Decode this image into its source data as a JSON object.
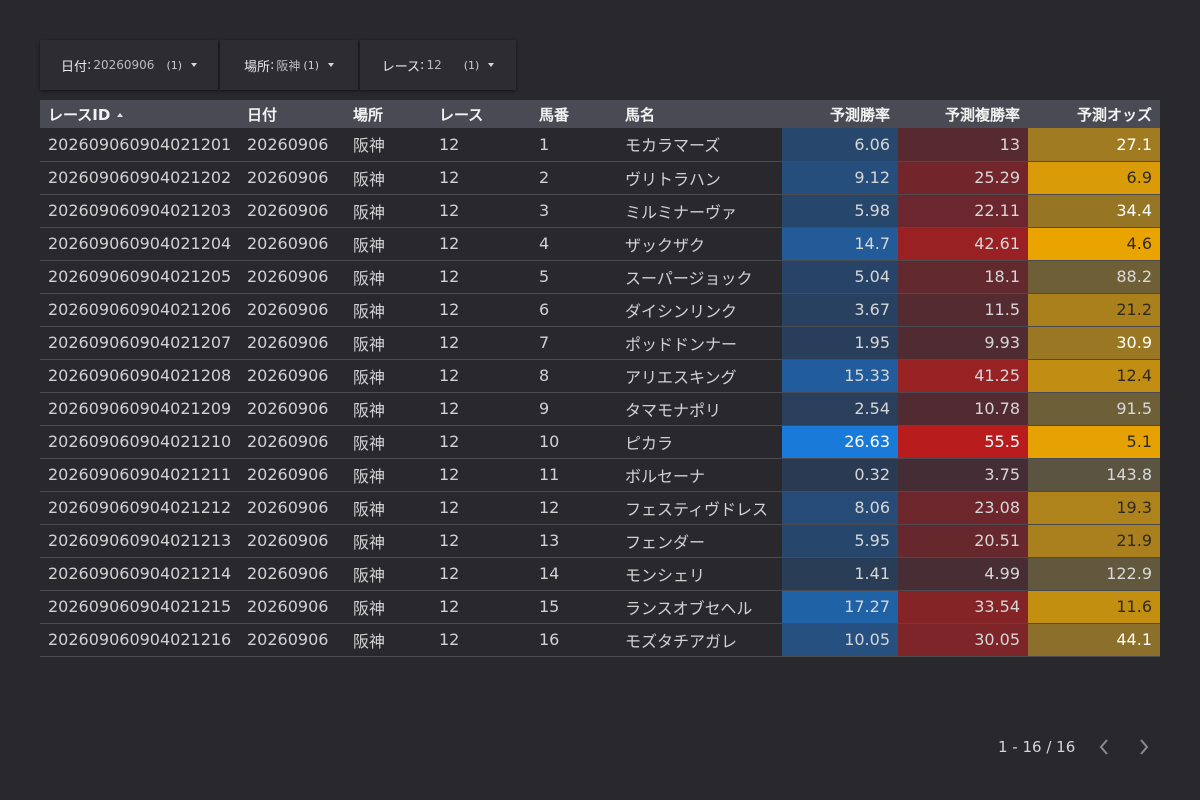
{
  "filters": [
    {
      "label": "日付",
      "value": "20260906",
      "count": "(1)"
    },
    {
      "label": "場所",
      "value": "阪神",
      "count": "(1)"
    },
    {
      "label": "レース",
      "value": "12",
      "count": "(1)"
    }
  ],
  "table": {
    "sort_column": "レースID",
    "sort_direction": "ascending",
    "columns": [
      "レースID",
      "日付",
      "場所",
      "レース",
      "馬番",
      "馬名",
      "予測勝率",
      "予測複勝率",
      "予測オッズ"
    ],
    "rows": [
      [
        "202609060904021201",
        "20260906",
        "阪神",
        "12",
        "1",
        "モカラマーズ",
        "6.06",
        "13",
        "27.1"
      ],
      [
        "202609060904021202",
        "20260906",
        "阪神",
        "12",
        "2",
        "ヴリトラハン",
        "9.12",
        "25.29",
        "6.9"
      ],
      [
        "202609060904021203",
        "20260906",
        "阪神",
        "12",
        "3",
        "ミルミナーヴァ",
        "5.98",
        "22.11",
        "34.4"
      ],
      [
        "202609060904021204",
        "20260906",
        "阪神",
        "12",
        "4",
        "ザックザク",
        "14.7",
        "42.61",
        "4.6"
      ],
      [
        "202609060904021205",
        "20260906",
        "阪神",
        "12",
        "5",
        "スーパージョック",
        "5.04",
        "18.1",
        "88.2"
      ],
      [
        "202609060904021206",
        "20260906",
        "阪神",
        "12",
        "6",
        "ダイシンリンク",
        "3.67",
        "11.5",
        "21.2"
      ],
      [
        "202609060904021207",
        "20260906",
        "阪神",
        "12",
        "7",
        "ポッドドンナー",
        "1.95",
        "9.93",
        "30.9"
      ],
      [
        "202609060904021208",
        "20260906",
        "阪神",
        "12",
        "8",
        "アリエスキング",
        "15.33",
        "41.25",
        "12.4"
      ],
      [
        "202609060904021209",
        "20260906",
        "阪神",
        "12",
        "9",
        "タマモナポリ",
        "2.54",
        "10.78",
        "91.5"
      ],
      [
        "202609060904021210",
        "20260906",
        "阪神",
        "12",
        "10",
        "ピカラ",
        "26.63",
        "55.5",
        "5.1"
      ],
      [
        "202609060904021211",
        "20260906",
        "阪神",
        "12",
        "11",
        "ボルセーナ",
        "0.32",
        "3.75",
        "143.8"
      ],
      [
        "202609060904021212",
        "20260906",
        "阪神",
        "12",
        "12",
        "フェスティヴドレス",
        "8.06",
        "23.08",
        "19.3"
      ],
      [
        "202609060904021213",
        "20260906",
        "阪神",
        "12",
        "13",
        "フェンダー",
        "5.95",
        "20.51",
        "21.9"
      ],
      [
        "202609060904021214",
        "20260906",
        "阪神",
        "12",
        "14",
        "モンシェリ",
        "1.41",
        "4.99",
        "122.9"
      ],
      [
        "202609060904021215",
        "20260906",
        "阪神",
        "12",
        "15",
        "ランスオブセヘル",
        "17.27",
        "33.54",
        "11.6"
      ],
      [
        "202609060904021216",
        "20260906",
        "阪神",
        "12",
        "16",
        "モズタチアガレ",
        "10.05",
        "30.05",
        "44.1"
      ]
    ]
  },
  "heatmap_colors": {
    "win_rate_low": "#2a3a52",
    "win_rate_high": "#1a7ad9",
    "place_rate_low": "#3e2e36",
    "place_rate_high": "#b91c1c",
    "odds_favored": "#eaa400",
    "odds_long": "#5a5440"
  },
  "pagination": {
    "range": "1 - 16 / 16"
  },
  "icons": {
    "filter_dropdown": "caret-down-icon",
    "sort": "sort-asc-icon",
    "prev": "chevron-left-icon",
    "next": "chevron-right-icon"
  }
}
